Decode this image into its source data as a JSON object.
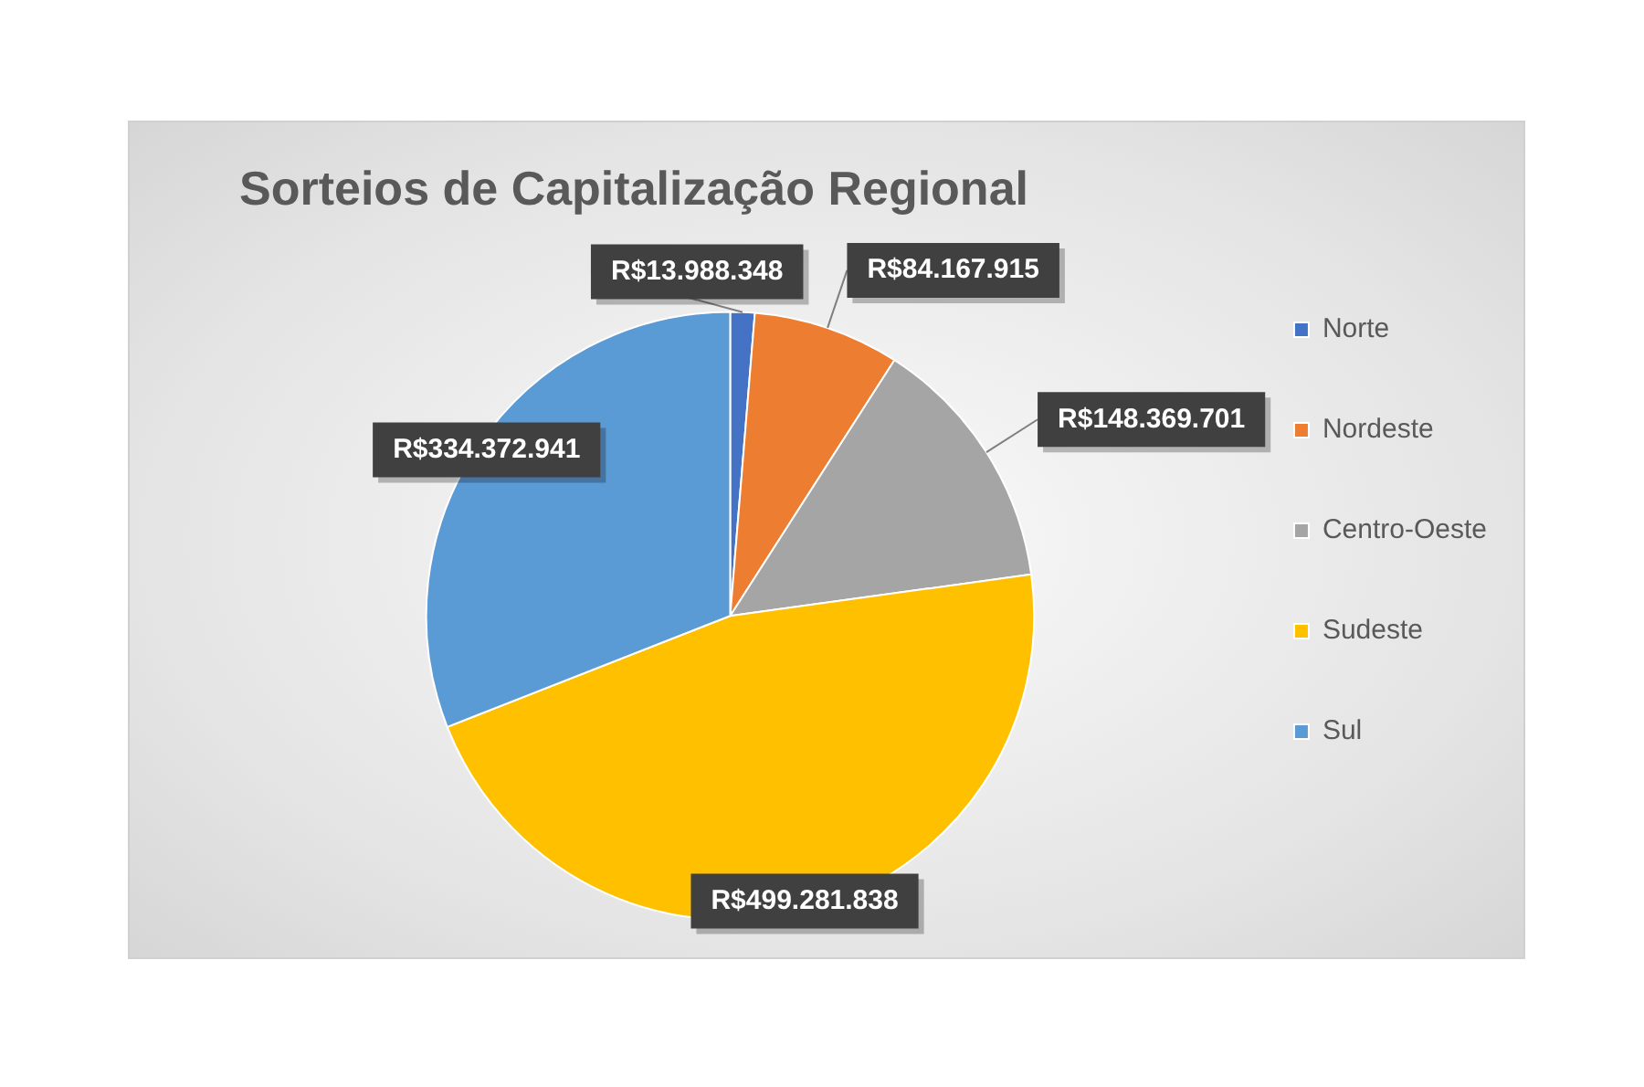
{
  "chart_data": {
    "type": "pie",
    "title": "Sorteios de Capitalização Regional",
    "categories": [
      "Norte",
      "Nordeste",
      "Centro-Oeste",
      "Sudeste",
      "Sul"
    ],
    "values": [
      13988348,
      84167915,
      148369701,
      499281838,
      334372941
    ],
    "value_labels": [
      "R$13.988.348",
      "R$84.167.915",
      "R$148.369.701",
      "R$499.281.838",
      "R$334.372.941"
    ],
    "colors": [
      "#4472c4",
      "#ed7d31",
      "#a5a5a5",
      "#ffc000",
      "#5b9bd5"
    ],
    "legend": "right"
  }
}
